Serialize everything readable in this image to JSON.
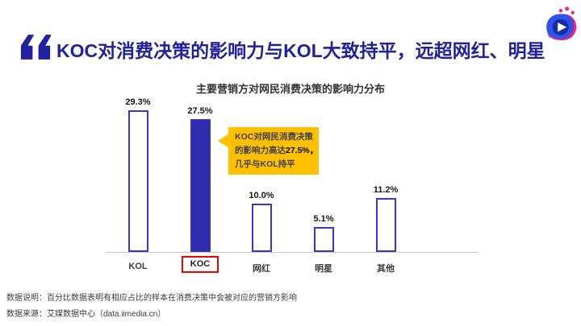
{
  "header": {
    "title": "KOC对消费决策的影响力与KOL大致持平，远超网红、明星",
    "title_color": "#21219B",
    "quote_icon_color": "#21219B"
  },
  "logo": {
    "name": "iimedia-play-logo",
    "colors": {
      "pink": "#F0247F",
      "blue": "#2F54EB",
      "navy": "#1B2BA6",
      "cyan": "#35C8F0",
      "play": "#ffffff"
    }
  },
  "chart_data": {
    "type": "bar",
    "title": "主要营销方对网民消费决策的影响力分布",
    "categories": [
      "KOL",
      "KOC",
      "网红",
      "明星",
      "其他"
    ],
    "values": [
      29.3,
      27.5,
      10.0,
      5.1,
      11.2
    ],
    "value_labels": [
      "29.3%",
      "27.5%",
      "10.0%",
      "5.1%",
      "11.2%"
    ],
    "unit": "%",
    "ylim": [
      0,
      30
    ],
    "grid": false,
    "legend": "none",
    "highlight_index": 1,
    "bar_outline_color": "#4131C9",
    "highlight_fill_color": "#2E2BAC",
    "highlight_box_color": "#F20000",
    "axis_color": "#c9c9c9"
  },
  "callout": {
    "line1": "KOC对网民消费决策",
    "line2_prefix": "的影响力高达",
    "line2_bold": "27.5%，",
    "line3": "几乎与KOL持平",
    "bg_color": "#FFC000"
  },
  "footer": {
    "note1": "数据说明：百分比数据表明有相应占比的样本在消费决策中会被对应的营销方影响",
    "note2": "数据来源：艾媒数据中心（data.iimedia.cn）"
  }
}
